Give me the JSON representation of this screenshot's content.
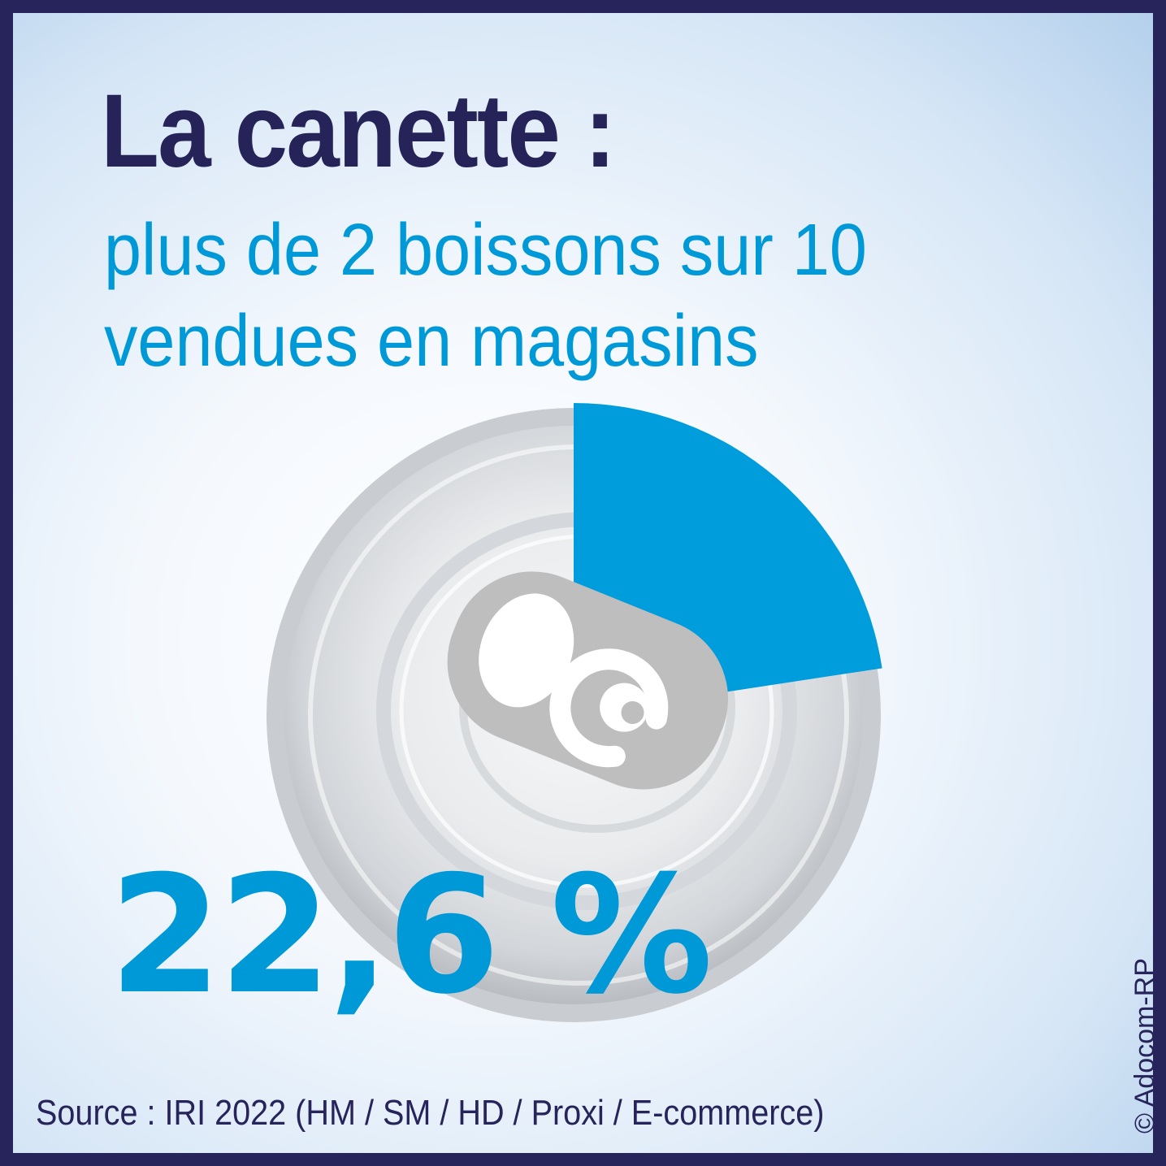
{
  "header": {
    "title": "La canette :",
    "subtitle_line1": "plus de 2 boissons sur 10",
    "subtitle_line2": "vendues en magasins"
  },
  "chart_data": {
    "type": "pie",
    "slices": [
      {
        "value": 22.6,
        "color": "#009ddc"
      },
      {
        "value": 77.4,
        "color": "#cfd3d7"
      }
    ],
    "value_label": "22,6 %"
  },
  "footer": {
    "source": "Source : IRI 2022 (HM / SM / HD / Proxi / E-commerce)",
    "copyright": "© Adocom-RP"
  },
  "icons": {
    "can": "can-lid-icon",
    "pull_tab": "pull-tab-icon"
  }
}
